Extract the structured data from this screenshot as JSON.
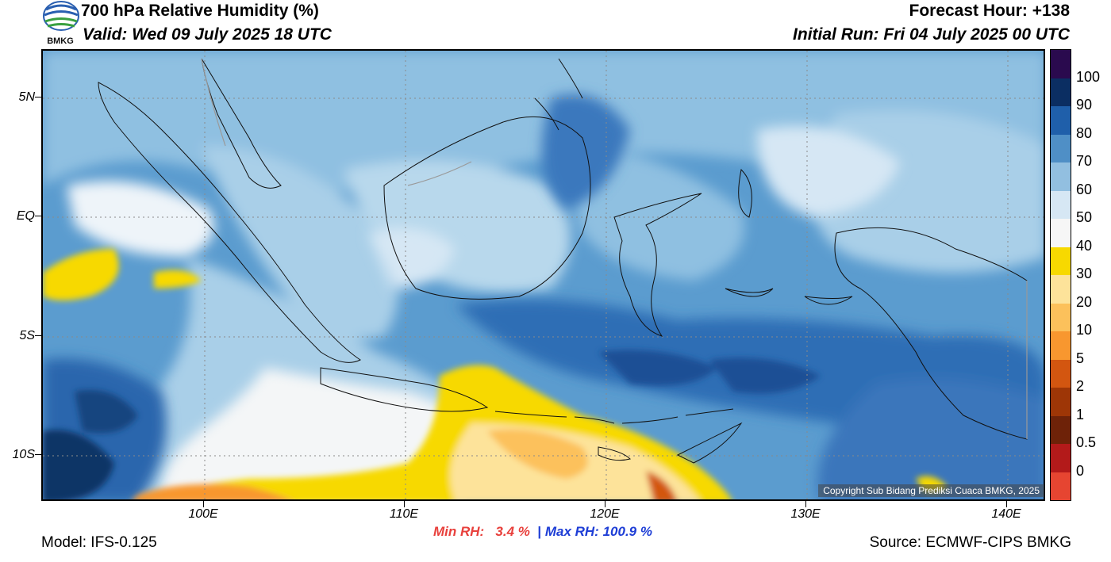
{
  "header": {
    "title": "700 hPa Relative Humidity (%)",
    "valid": "Valid: Wed 09 July 2025 18 UTC",
    "forecast_hour": "Forecast Hour: +138",
    "initial_run": "Initial Run: Fri 04 July 2025 00 UTC"
  },
  "logo": {
    "text": "BMKG",
    "icon": "bmkg-logo-icon"
  },
  "map": {
    "lat_labels": [
      "5N",
      "EQ",
      "5S",
      "10S"
    ],
    "lon_labels": [
      "100E",
      "110E",
      "120E",
      "130E",
      "140E"
    ],
    "copyright": "Copyright Sub Bidang Prediksi Cuaca BMKG, 2025"
  },
  "colorbar": {
    "labels": [
      "100",
      "90",
      "80",
      "70",
      "60",
      "50",
      "40",
      "30",
      "20",
      "10",
      "5",
      "2",
      "1",
      "0.5",
      "0"
    ],
    "colors": [
      "#2a0a4e",
      "#0b2e62",
      "#1f5faa",
      "#4f8fc6",
      "#92bfe0",
      "#d6e7f4",
      "#f6f6f6",
      "#f7d900",
      "#fde39a",
      "#fcc15b",
      "#f8972f",
      "#d35610",
      "#9e3606",
      "#6e2208",
      "#b31a1a",
      "#e64531"
    ]
  },
  "footer": {
    "min_label": "Min RH:",
    "min_value": "3.4 %",
    "separator": "|",
    "max_label": "Max RH:",
    "max_value": "100.9 %",
    "model": "Model: IFS-0.125",
    "source": "Source: ECMWF-CIPS BMKG"
  }
}
